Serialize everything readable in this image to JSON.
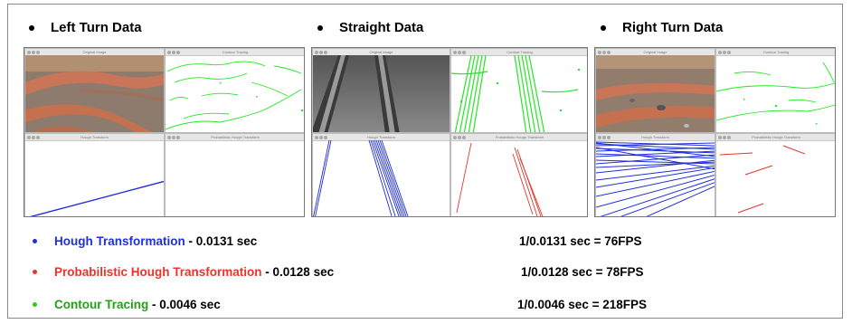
{
  "headings": [
    "Left Turn Data",
    "Straight Data",
    "Right Turn Data"
  ],
  "panels": [
    {
      "windows": [
        "Original Image",
        "Contour Tracing",
        "Hough Transform",
        "Probabilistic Hough Transform"
      ]
    },
    {
      "windows": [
        "Original Image",
        "Contour Tracing",
        "Hough Transform",
        "Probabilistic Hough Transform"
      ]
    },
    {
      "windows": [
        "Original Image",
        "Contour Tracing",
        "Hough Transform",
        "Probabilistic Hough Transform"
      ]
    }
  ],
  "stats": [
    {
      "name": "Hough Transformation",
      "suffix": " - 0.0131 sec",
      "fps": "1/0.0131 sec = 76FPS",
      "color": "#1f2fdc",
      "bullet": "#1f2fdc"
    },
    {
      "name": "Probabilistic Hough Transformation",
      "suffix": " - 0.0128 sec",
      "fps": "1/0.0128 sec = 78FPS",
      "color": "#e8352a",
      "bullet": "#e8352a"
    },
    {
      "name": "Contour Tracing",
      "suffix": " - 0.0046 sec",
      "fps": "1/0.0046 sec = 218FPS",
      "color": "#23a016",
      "bullet": "#2ecc1a"
    }
  ]
}
